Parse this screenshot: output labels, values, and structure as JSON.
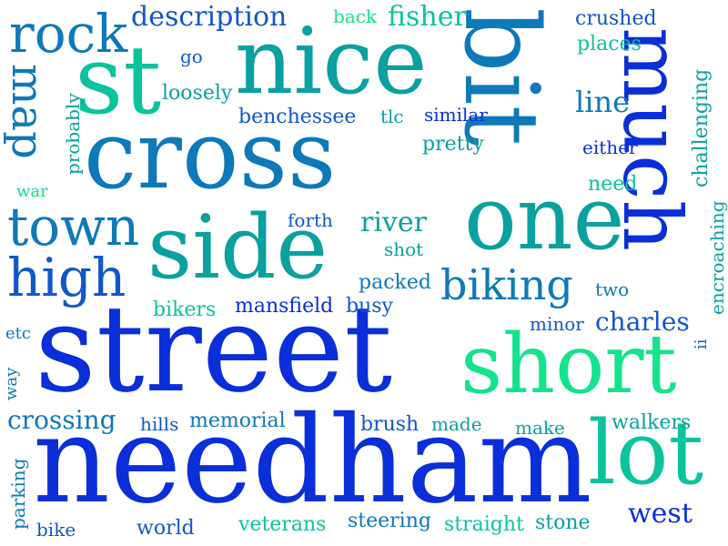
{
  "words": {
    "street": "street",
    "needham": "needham",
    "cross": "cross",
    "short": "short",
    "nice": "nice",
    "st": "st",
    "bit": "bit",
    "one": "one",
    "side": "side",
    "much": "much",
    "lot": "lot",
    "rock": "rock",
    "town": "town",
    "high": "high",
    "biking": "biking",
    "map": "map",
    "description": "description",
    "fisher": "fisher",
    "river": "river",
    "line": "line",
    "charles": "charles",
    "west": "west",
    "crossing": "crossing",
    "back": "back",
    "crushed": "crushed",
    "places": "places",
    "go": "go",
    "loosely": "loosely",
    "benchessee": "benchessee",
    "tlc": "tlc",
    "similar": "similar",
    "pretty": "pretty",
    "either": "either",
    "need": "need",
    "forth": "forth",
    "shot": "shot",
    "packed": "packed",
    "two": "two",
    "bikers": "bikers",
    "mansfield": "mansfield",
    "busy": "busy",
    "minor": "minor",
    "etc": "etc",
    "hills": "hills",
    "memorial": "memorial",
    "brush": "brush",
    "made": "made",
    "make": "make",
    "walkers": "walkers",
    "veterans": "veterans",
    "steering": "steering",
    "straight": "straight",
    "stone": "stone",
    "world": "world",
    "bike": "bike",
    "war": "war",
    "probably": "probably",
    "challenging": "challenging",
    "encroaching": "encroaching",
    "ii": "ii",
    "way": "way",
    "parking": "parking"
  },
  "colors": {
    "deep_blue": "#0a2fd8",
    "blue": "#1257c9",
    "steel_blue": "#0d79b8",
    "teal": "#0aa0a0",
    "sea_green": "#0bc39a",
    "spring_green": "#13e38a",
    "background": "#ffffff"
  }
}
